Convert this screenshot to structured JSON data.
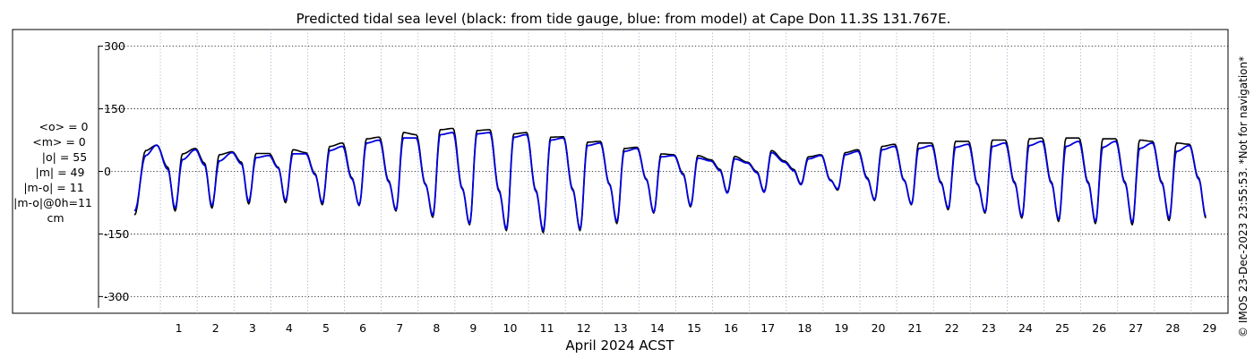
{
  "chart_data": {
    "type": "line",
    "title": "Predicted tidal sea level (black: from tide gauge, blue: from model) at Cape Don 11.3S 131.767E.",
    "xlabel": "April 2024 ACST",
    "ylabel": "",
    "xlim": [
      0.05,
      30.0
    ],
    "ylim": [
      -340,
      340
    ],
    "x_ticks": [
      "1",
      "2",
      "3",
      "4",
      "5",
      "6",
      "7",
      "8",
      "9",
      "10",
      "11",
      "12",
      "13",
      "14",
      "15",
      "16",
      "17",
      "18",
      "19",
      "20",
      "21",
      "22",
      "23",
      "24",
      "25",
      "26",
      "27",
      "28",
      "29"
    ],
    "y_ticks": [
      "300",
      "150",
      "0",
      "-150",
      "-300"
    ],
    "grid": true,
    "series": [
      {
        "name": "black",
        "color": "#000000",
        "highs": [
          [
            0.6,
            50
          ],
          [
            0.9,
            63
          ],
          [
            1.6,
            42
          ],
          [
            1.95,
            55
          ],
          [
            2.6,
            40
          ],
          [
            2.95,
            47
          ],
          [
            3.6,
            43
          ],
          [
            3.95,
            43
          ],
          [
            4.6,
            52
          ],
          [
            4.95,
            45
          ],
          [
            5.6,
            60
          ],
          [
            5.95,
            68
          ],
          [
            6.6,
            78
          ],
          [
            6.95,
            82
          ],
          [
            7.6,
            93
          ],
          [
            7.95,
            88
          ],
          [
            8.6,
            100
          ],
          [
            8.95,
            103
          ],
          [
            9.6,
            98
          ],
          [
            9.95,
            100
          ],
          [
            10.6,
            90
          ],
          [
            10.95,
            93
          ],
          [
            11.6,
            82
          ],
          [
            11.95,
            83
          ],
          [
            12.6,
            70
          ],
          [
            12.95,
            72
          ],
          [
            13.6,
            55
          ],
          [
            13.95,
            58
          ],
          [
            14.6,
            42
          ],
          [
            14.95,
            40
          ],
          [
            15.6,
            38
          ],
          [
            15.95,
            28
          ],
          [
            16.6,
            36
          ],
          [
            16.95,
            22
          ],
          [
            17.6,
            50
          ],
          [
            17.95,
            25
          ],
          [
            18.6,
            35
          ],
          [
            18.95,
            40
          ],
          [
            19.6,
            45
          ],
          [
            19.95,
            52
          ],
          [
            20.6,
            60
          ],
          [
            20.95,
            65
          ],
          [
            21.6,
            68
          ],
          [
            21.95,
            68
          ],
          [
            22.6,
            72
          ],
          [
            22.95,
            72
          ],
          [
            23.6,
            75
          ],
          [
            23.95,
            75
          ],
          [
            24.6,
            78
          ],
          [
            24.95,
            80
          ],
          [
            25.6,
            80
          ],
          [
            25.95,
            80
          ],
          [
            26.6,
            78
          ],
          [
            26.95,
            78
          ],
          [
            27.6,
            75
          ],
          [
            27.95,
            72
          ],
          [
            28.6,
            68
          ],
          [
            28.95,
            65
          ]
        ],
        "lows": [
          [
            0.3,
            -105
          ],
          [
            1.2,
            10
          ],
          [
            1.4,
            -95
          ],
          [
            2.2,
            20
          ],
          [
            2.4,
            -88
          ],
          [
            3.2,
            22
          ],
          [
            3.4,
            -78
          ],
          [
            4.2,
            10
          ],
          [
            4.4,
            -75
          ],
          [
            5.2,
            -5
          ],
          [
            5.4,
            -80
          ],
          [
            6.2,
            -15
          ],
          [
            6.4,
            -82
          ],
          [
            7.2,
            -22
          ],
          [
            7.4,
            -95
          ],
          [
            8.2,
            -30
          ],
          [
            8.4,
            -110
          ],
          [
            9.2,
            -40
          ],
          [
            9.4,
            -128
          ],
          [
            10.2,
            -45
          ],
          [
            10.4,
            -142
          ],
          [
            11.2,
            -45
          ],
          [
            11.4,
            -147
          ],
          [
            12.2,
            -42
          ],
          [
            12.4,
            -142
          ],
          [
            13.2,
            -30
          ],
          [
            13.4,
            -125
          ],
          [
            14.2,
            -18
          ],
          [
            14.4,
            -100
          ],
          [
            15.2,
            -5
          ],
          [
            15.4,
            -85
          ],
          [
            16.2,
            5
          ],
          [
            16.4,
            -50
          ],
          [
            17.2,
            0
          ],
          [
            17.4,
            -48
          ],
          [
            18.2,
            5
          ],
          [
            18.4,
            -30
          ],
          [
            19.2,
            -20
          ],
          [
            19.4,
            -45
          ],
          [
            20.2,
            -15
          ],
          [
            20.4,
            -70
          ],
          [
            21.2,
            -20
          ],
          [
            21.4,
            -80
          ],
          [
            22.2,
            -25
          ],
          [
            22.4,
            -92
          ],
          [
            23.2,
            -30
          ],
          [
            23.4,
            -100
          ],
          [
            24.2,
            -25
          ],
          [
            24.4,
            -112
          ],
          [
            25.2,
            -25
          ],
          [
            25.4,
            -120
          ],
          [
            26.2,
            -25
          ],
          [
            26.4,
            -125
          ],
          [
            27.2,
            -25
          ],
          [
            27.4,
            -128
          ],
          [
            28.2,
            -25
          ],
          [
            28.4,
            -118
          ],
          [
            29.2,
            -15
          ],
          [
            29.4,
            -112
          ]
        ]
      },
      {
        "name": "blue",
        "color": "#0000dd",
        "highs": [
          [
            0.6,
            38
          ],
          [
            0.9,
            63
          ],
          [
            1.6,
            28
          ],
          [
            1.95,
            52
          ],
          [
            2.6,
            25
          ],
          [
            2.95,
            45
          ],
          [
            3.6,
            33
          ],
          [
            3.95,
            38
          ],
          [
            4.6,
            42
          ],
          [
            4.95,
            42
          ],
          [
            5.6,
            50
          ],
          [
            5.95,
            60
          ],
          [
            6.6,
            68
          ],
          [
            6.95,
            75
          ],
          [
            7.6,
            80
          ],
          [
            7.95,
            80
          ],
          [
            8.6,
            88
          ],
          [
            8.95,
            93
          ],
          [
            9.6,
            90
          ],
          [
            9.95,
            93
          ],
          [
            10.6,
            82
          ],
          [
            10.95,
            88
          ],
          [
            11.6,
            75
          ],
          [
            11.95,
            80
          ],
          [
            12.6,
            62
          ],
          [
            12.95,
            68
          ],
          [
            13.6,
            48
          ],
          [
            13.95,
            55
          ],
          [
            14.6,
            35
          ],
          [
            14.95,
            38
          ],
          [
            15.6,
            32
          ],
          [
            15.95,
            25
          ],
          [
            16.6,
            30
          ],
          [
            16.95,
            20
          ],
          [
            17.6,
            45
          ],
          [
            17.95,
            22
          ],
          [
            18.6,
            30
          ],
          [
            18.95,
            38
          ],
          [
            19.6,
            40
          ],
          [
            19.95,
            48
          ],
          [
            20.6,
            52
          ],
          [
            20.95,
            60
          ],
          [
            21.6,
            55
          ],
          [
            21.95,
            62
          ],
          [
            22.6,
            58
          ],
          [
            22.95,
            65
          ],
          [
            23.6,
            60
          ],
          [
            23.95,
            68
          ],
          [
            24.6,
            62
          ],
          [
            24.95,
            72
          ],
          [
            25.6,
            60
          ],
          [
            25.95,
            72
          ],
          [
            26.6,
            58
          ],
          [
            26.95,
            72
          ],
          [
            27.6,
            55
          ],
          [
            27.95,
            68
          ],
          [
            28.6,
            48
          ],
          [
            28.95,
            62
          ]
        ],
        "lows": [
          [
            0.3,
            -95
          ],
          [
            1.2,
            5
          ],
          [
            1.4,
            -88
          ],
          [
            2.2,
            15
          ],
          [
            2.4,
            -82
          ],
          [
            3.2,
            18
          ],
          [
            3.4,
            -72
          ],
          [
            4.2,
            8
          ],
          [
            4.4,
            -70
          ],
          [
            5.2,
            -8
          ],
          [
            5.4,
            -75
          ],
          [
            6.2,
            -18
          ],
          [
            6.4,
            -80
          ],
          [
            7.2,
            -25
          ],
          [
            7.4,
            -92
          ],
          [
            8.2,
            -32
          ],
          [
            8.4,
            -105
          ],
          [
            9.2,
            -42
          ],
          [
            9.4,
            -125
          ],
          [
            10.2,
            -48
          ],
          [
            10.4,
            -138
          ],
          [
            11.2,
            -48
          ],
          [
            11.4,
            -142
          ],
          [
            12.2,
            -45
          ],
          [
            12.4,
            -138
          ],
          [
            13.2,
            -32
          ],
          [
            13.4,
            -120
          ],
          [
            14.2,
            -20
          ],
          [
            14.4,
            -98
          ],
          [
            15.2,
            -8
          ],
          [
            15.4,
            -82
          ],
          [
            16.2,
            2
          ],
          [
            16.4,
            -52
          ],
          [
            17.2,
            -3
          ],
          [
            17.4,
            -50
          ],
          [
            18.2,
            2
          ],
          [
            18.4,
            -32
          ],
          [
            19.2,
            -22
          ],
          [
            19.4,
            -42
          ],
          [
            20.2,
            -18
          ],
          [
            20.4,
            -68
          ],
          [
            21.2,
            -22
          ],
          [
            21.4,
            -78
          ],
          [
            22.2,
            -28
          ],
          [
            22.4,
            -88
          ],
          [
            23.2,
            -32
          ],
          [
            23.4,
            -97
          ],
          [
            24.2,
            -28
          ],
          [
            24.4,
            -108
          ],
          [
            25.2,
            -28
          ],
          [
            25.4,
            -115
          ],
          [
            26.2,
            -28
          ],
          [
            26.4,
            -120
          ],
          [
            27.2,
            -28
          ],
          [
            27.4,
            -122
          ],
          [
            28.2,
            -28
          ],
          [
            28.4,
            -112
          ],
          [
            29.2,
            -18
          ],
          [
            29.4,
            -108
          ]
        ]
      }
    ]
  },
  "stats": {
    "mean_o": "<o> = 0",
    "mean_m": "<m> = 0",
    "abs_o": "|o| = 55",
    "abs_m": "|m| = 49",
    "abs_m_o": "|m-o| = 11",
    "abs_m_o_0h": "|m-o|@0h=11",
    "unit": "cm"
  },
  "copyright": "© IMOS 23-Dec-2023 23:55:53. *Not for navigation*"
}
